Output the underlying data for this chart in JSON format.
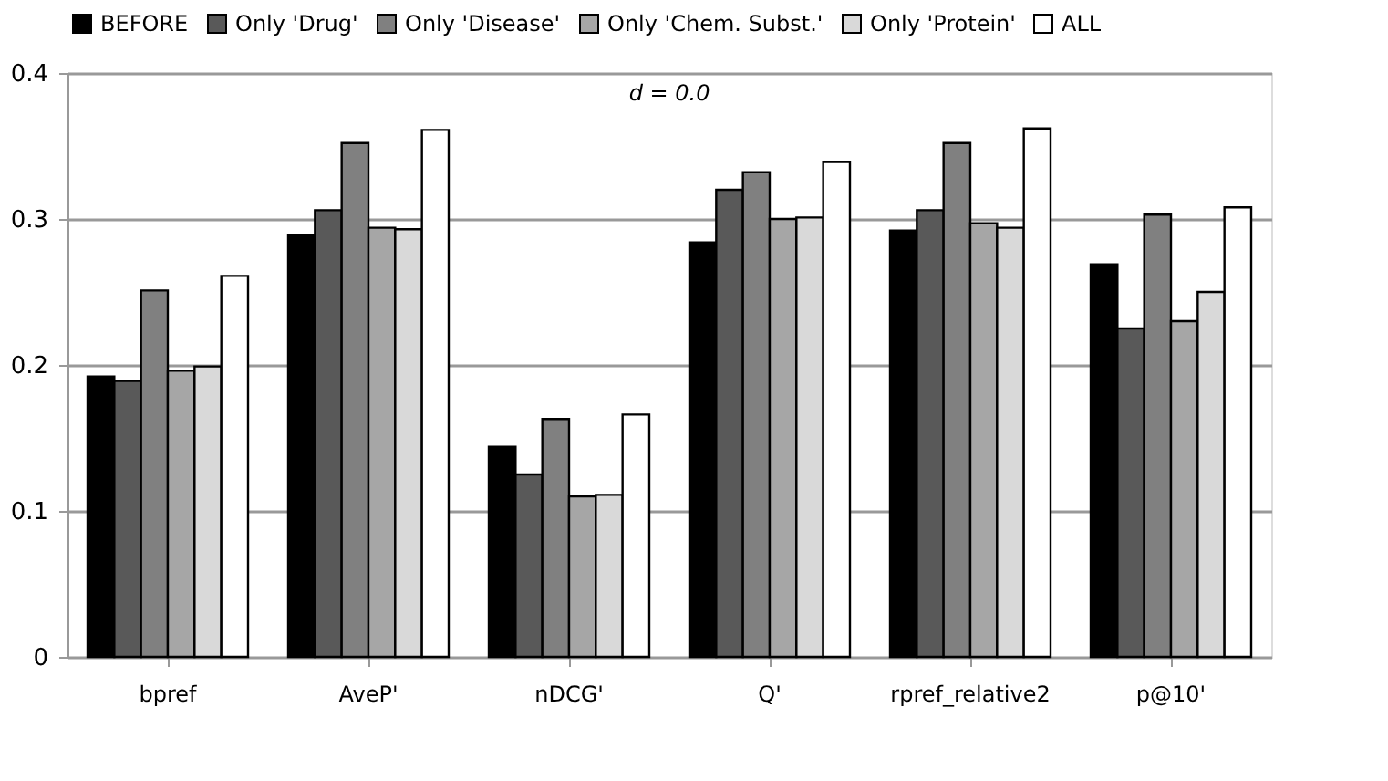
{
  "chart_data": {
    "type": "bar",
    "categories": [
      "bpref",
      "AveP'",
      "nDCG'",
      "Q'",
      "rpref_relative2",
      "p@10'"
    ],
    "series": [
      {
        "name": "BEFORE",
        "color": "#000000",
        "values": [
          0.192,
          0.289,
          0.144,
          0.284,
          0.292,
          0.269
        ]
      },
      {
        "name": "Only 'Drug'",
        "color": "#595959",
        "values": [
          0.189,
          0.306,
          0.125,
          0.32,
          0.306,
          0.225
        ]
      },
      {
        "name": "Only 'Disease'",
        "color": "#808080",
        "values": [
          0.251,
          0.352,
          0.163,
          0.332,
          0.352,
          0.303
        ]
      },
      {
        "name": "Only 'Chem. Subst.'",
        "color": "#a6a6a6",
        "values": [
          0.196,
          0.294,
          0.11,
          0.3,
          0.297,
          0.23
        ]
      },
      {
        "name": "Only 'Protein'",
        "color": "#d9d9d9",
        "values": [
          0.199,
          0.293,
          0.111,
          0.301,
          0.294,
          0.25
        ]
      },
      {
        "name": "ALL",
        "color": "#ffffff",
        "values": [
          0.261,
          0.361,
          0.166,
          0.339,
          0.362,
          0.308
        ]
      }
    ],
    "ylim": [
      0,
      0.4
    ],
    "yticks": [
      0,
      0.1,
      0.2,
      0.3,
      0.4
    ],
    "grid": "y",
    "legend": "top",
    "annotations": [
      "d = 0.0"
    ]
  }
}
